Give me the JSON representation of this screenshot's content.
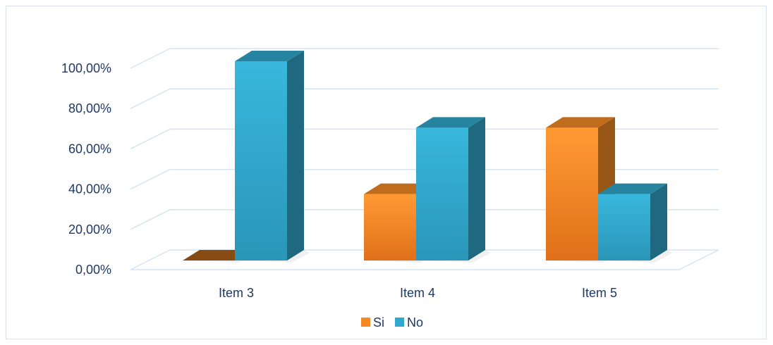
{
  "chart_data": {
    "type": "bar",
    "categories": [
      "Item 3",
      "Item 4",
      "Item 5"
    ],
    "series": [
      {
        "name": "Si",
        "values": [
          0,
          33.33,
          66.67
        ],
        "color": "#f58a24"
      },
      {
        "name": "No",
        "values": [
          100,
          66.67,
          33.33
        ],
        "color": "#31a9cf"
      }
    ],
    "yticks": [
      "0,00%",
      "20,00%",
      "40,00%",
      "60,00%",
      "80,00%",
      "100,00%"
    ],
    "ylim": [
      0,
      100
    ],
    "grid": true,
    "three_d": true,
    "legend_position": "bottom",
    "gridline_color": "#d6e4f2"
  }
}
